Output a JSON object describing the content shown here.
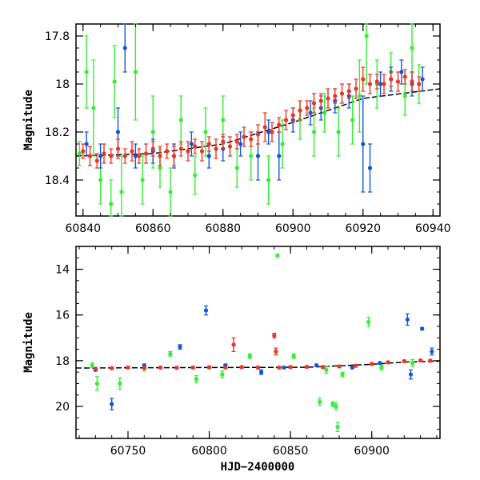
{
  "chart_data": [
    {
      "type": "scatter",
      "title": "",
      "xlabel": "",
      "ylabel": "Magnitude",
      "xlim": [
        60838,
        60942
      ],
      "ylim": [
        18.55,
        17.75
      ],
      "y_inverted": true,
      "grid": false,
      "x_ticks": [
        60840,
        60860,
        60880,
        60900,
        60920,
        60940
      ],
      "y_ticks": [
        17.8,
        18,
        18.2,
        18.4
      ],
      "x_tick_labels": [
        "60840",
        "60860",
        "60880",
        "60900",
        "60920",
        "60940"
      ],
      "y_tick_labels": [
        "17.8",
        "18",
        "18.2",
        "18.4"
      ],
      "series_colors": {
        "green": "#33ee33",
        "blue": "#1155dd",
        "red": "#ee3322",
        "trend": "#000000"
      },
      "series": [
        {
          "color": "#33ee33",
          "points": [
            [
              60839,
              18.29,
              0.05
            ],
            [
              60841,
              17.95,
              0.15
            ],
            [
              60843,
              18.1,
              0.2
            ],
            [
              60845,
              18.4,
              0.1
            ],
            [
              60848,
              18.5,
              0.1
            ],
            [
              60849,
              17.99,
              0.15
            ],
            [
              60851,
              18.45,
              0.15
            ],
            [
              60855,
              17.95,
              0.2
            ],
            [
              60857,
              18.4,
              0.1
            ],
            [
              60860,
              18.2,
              0.15
            ],
            [
              60862,
              18.35,
              0.08
            ],
            [
              60865,
              18.45,
              0.1
            ],
            [
              60868,
              18.15,
              0.1
            ],
            [
              60872,
              18.38,
              0.08
            ],
            [
              60875,
              18.2,
              0.1
            ],
            [
              60880,
              18.15,
              0.1
            ],
            [
              60884,
              18.35,
              0.08
            ],
            [
              60888,
              18.3,
              0.1
            ],
            [
              60893,
              18.4,
              0.1
            ],
            [
              60897,
              18.25,
              0.1
            ],
            [
              60902,
              18.15,
              0.08
            ],
            [
              60906,
              18.2,
              0.1
            ],
            [
              60909,
              18.12,
              0.08
            ],
            [
              60913,
              18.2,
              0.1
            ],
            [
              60917,
              18.15,
              0.1
            ],
            [
              60919,
              18.05,
              0.15
            ],
            [
              60921,
              17.8,
              0.2
            ],
            [
              60924,
              18.0,
              0.1
            ],
            [
              60928,
              17.95,
              0.08
            ],
            [
              60932,
              18.05,
              0.08
            ],
            [
              60934,
              17.85,
              0.1
            ],
            [
              60936,
              18.0,
              0.08
            ]
          ]
        },
        {
          "color": "#1155dd",
          "points": [
            [
              60841,
              18.25,
              0.05
            ],
            [
              60845,
              18.3,
              0.05
            ],
            [
              60850,
              18.2,
              0.1
            ],
            [
              60852,
              17.85,
              0.1
            ],
            [
              60855,
              18.3,
              0.05
            ],
            [
              60860,
              18.28,
              0.05
            ],
            [
              60866,
              18.3,
              0.05
            ],
            [
              60871,
              18.25,
              0.05
            ],
            [
              60876,
              18.3,
              0.05
            ],
            [
              60880,
              18.27,
              0.05
            ],
            [
              60885,
              18.25,
              0.05
            ],
            [
              60890,
              18.3,
              0.1
            ],
            [
              60893,
              18.2,
              0.05
            ],
            [
              60896,
              18.3,
              0.1
            ],
            [
              60900,
              18.15,
              0.05
            ],
            [
              60905,
              18.12,
              0.05
            ],
            [
              60908,
              18.1,
              0.05
            ],
            [
              60912,
              18.07,
              0.05
            ],
            [
              60916,
              18.05,
              0.05
            ],
            [
              60920,
              18.25,
              0.2
            ],
            [
              60922,
              18.35,
              0.1
            ],
            [
              60925,
              18.0,
              0.05
            ],
            [
              60928,
              17.98,
              0.05
            ],
            [
              60931,
              17.95,
              0.05
            ],
            [
              60934,
              18.0,
              0.05
            ],
            [
              60937,
              17.98,
              0.05
            ]
          ]
        },
        {
          "color": "#ee3322",
          "points": [
            [
              60840,
              18.28,
              0.03
            ],
            [
              60842,
              18.3,
              0.04
            ],
            [
              60844,
              18.32,
              0.03
            ],
            [
              60846,
              18.29,
              0.04
            ],
            [
              60848,
              18.3,
              0.03
            ],
            [
              60850,
              18.27,
              0.04
            ],
            [
              60852,
              18.3,
              0.03
            ],
            [
              60854,
              18.28,
              0.04
            ],
            [
              60856,
              18.3,
              0.03
            ],
            [
              60858,
              18.29,
              0.04
            ],
            [
              60860,
              18.27,
              0.03
            ],
            [
              60862,
              18.3,
              0.04
            ],
            [
              60864,
              18.28,
              0.03
            ],
            [
              60866,
              18.3,
              0.04
            ],
            [
              60868,
              18.27,
              0.03
            ],
            [
              60870,
              18.28,
              0.04
            ],
            [
              60872,
              18.26,
              0.03
            ],
            [
              60874,
              18.28,
              0.04
            ],
            [
              60876,
              18.25,
              0.03
            ],
            [
              60878,
              18.27,
              0.04
            ],
            [
              60880,
              18.24,
              0.03
            ],
            [
              60882,
              18.26,
              0.04
            ],
            [
              60884,
              18.24,
              0.03
            ],
            [
              60886,
              18.22,
              0.04
            ],
            [
              60888,
              18.23,
              0.03
            ],
            [
              60890,
              18.21,
              0.04
            ],
            [
              60892,
              18.18,
              0.06
            ],
            [
              60894,
              18.2,
              0.04
            ],
            [
              60896,
              18.17,
              0.03
            ],
            [
              60898,
              18.15,
              0.04
            ],
            [
              60900,
              18.13,
              0.03
            ],
            [
              60902,
              18.11,
              0.04
            ],
            [
              60904,
              18.1,
              0.03
            ],
            [
              60906,
              18.08,
              0.04
            ],
            [
              60908,
              18.07,
              0.03
            ],
            [
              60910,
              18.06,
              0.04
            ],
            [
              60912,
              18.05,
              0.03
            ],
            [
              60914,
              18.04,
              0.04
            ],
            [
              60916,
              18.03,
              0.03
            ],
            [
              60918,
              18.02,
              0.04
            ],
            [
              60920,
              17.98,
              0.05
            ],
            [
              60922,
              18.0,
              0.04
            ],
            [
              60924,
              17.99,
              0.03
            ],
            [
              60926,
              18.0,
              0.04
            ],
            [
              60928,
              17.98,
              0.03
            ],
            [
              60930,
              17.99,
              0.04
            ],
            [
              60932,
              17.97,
              0.03
            ],
            [
              60934,
              17.99,
              0.04
            ],
            [
              60936,
              18.0,
              0.03
            ]
          ]
        }
      ],
      "trend_line": [
        [
          60838,
          18.3
        ],
        [
          60860,
          18.29
        ],
        [
          60880,
          18.25
        ],
        [
          60900,
          18.16
        ],
        [
          60920,
          18.06
        ],
        [
          60942,
          18.02
        ]
      ]
    },
    {
      "type": "scatter",
      "title": "",
      "xlabel": "HJD−2400000",
      "ylabel": "Magnitude",
      "xlim": [
        60718,
        60942
      ],
      "ylim": [
        21.4,
        13
      ],
      "y_inverted": true,
      "grid": false,
      "x_ticks": [
        60750,
        60800,
        60850,
        60900
      ],
      "y_ticks": [
        14,
        16,
        18,
        20
      ],
      "x_tick_labels": [
        "60750",
        "60800",
        "60850",
        "60900"
      ],
      "y_tick_labels": [
        "14",
        "16",
        "18",
        "20"
      ],
      "series_colors": {
        "green": "#33ee33",
        "blue": "#1155dd",
        "red": "#ee3322",
        "trend": "#000000"
      },
      "series": [
        {
          "color": "#33ee33",
          "points": [
            [
              60728,
              18.2,
              0.1
            ],
            [
              60731,
              19.0,
              0.3
            ],
            [
              60745,
              19.0,
              0.25
            ],
            [
              60760,
              18.3,
              0.15
            ],
            [
              60776,
              17.7,
              0.1
            ],
            [
              60792,
              18.8,
              0.15
            ],
            [
              60808,
              18.6,
              0.15
            ],
            [
              60825,
              17.8,
              0.1
            ],
            [
              60842,
              13.4,
              0.05
            ],
            [
              60852,
              17.8,
              0.1
            ],
            [
              60868,
              19.8,
              0.15
            ],
            [
              60872,
              18.4,
              0.15
            ],
            [
              60876,
              19.9,
              0.1
            ],
            [
              60878,
              20.0,
              0.15
            ],
            [
              60879,
              20.9,
              0.2
            ],
            [
              60882,
              18.6,
              0.1
            ],
            [
              60898,
              16.3,
              0.2
            ],
            [
              60906,
              18.3,
              0.1
            ],
            [
              60925,
              18.1,
              0.15
            ]
          ]
        },
        {
          "color": "#1155dd",
          "points": [
            [
              60730,
              18.4,
              0.05
            ],
            [
              60740,
              19.9,
              0.25
            ],
            [
              60760,
              18.2,
              0.05
            ],
            [
              60782,
              17.4,
              0.1
            ],
            [
              60798,
              15.8,
              0.2
            ],
            [
              60810,
              18.2,
              0.05
            ],
            [
              60832,
              18.5,
              0.1
            ],
            [
              60846,
              18.3,
              0.05
            ],
            [
              60866,
              18.2,
              0.05
            ],
            [
              60888,
              18.3,
              0.05
            ],
            [
              60905,
              18.1,
              0.05
            ],
            [
              60922,
              16.2,
              0.25
            ],
            [
              60924,
              18.6,
              0.2
            ],
            [
              60931,
              16.6,
              0.05
            ],
            [
              60937,
              17.6,
              0.15
            ]
          ]
        },
        {
          "color": "#ee3322",
          "points": [
            [
              60730,
              18.35,
              0.05
            ],
            [
              60740,
              18.33,
              0.05
            ],
            [
              60750,
              18.3,
              0.05
            ],
            [
              60760,
              18.32,
              0.05
            ],
            [
              60770,
              18.3,
              0.05
            ],
            [
              60780,
              18.31,
              0.05
            ],
            [
              60790,
              18.3,
              0.05
            ],
            [
              60800,
              18.29,
              0.05
            ],
            [
              60810,
              18.3,
              0.05
            ],
            [
              60815,
              17.3,
              0.3
            ],
            [
              60820,
              18.28,
              0.05
            ],
            [
              60830,
              18.3,
              0.05
            ],
            [
              60840,
              16.9,
              0.1
            ],
            [
              60841,
              17.6,
              0.15
            ],
            [
              60843,
              18.3,
              0.05
            ],
            [
              60850,
              18.28,
              0.05
            ],
            [
              60860,
              18.27,
              0.05
            ],
            [
              60870,
              18.28,
              0.05
            ],
            [
              60880,
              18.25,
              0.05
            ],
            [
              60890,
              18.22,
              0.05
            ],
            [
              60900,
              18.14,
              0.05
            ],
            [
              60910,
              18.07,
              0.05
            ],
            [
              60920,
              18.02,
              0.05
            ],
            [
              60930,
              17.99,
              0.05
            ],
            [
              60936,
              18.0,
              0.05
            ]
          ]
        }
      ],
      "trend_line": [
        [
          60718,
          18.32
        ],
        [
          60800,
          18.3
        ],
        [
          60860,
          18.29
        ],
        [
          60900,
          18.16
        ],
        [
          60920,
          18.06
        ],
        [
          60942,
          18.02
        ]
      ]
    }
  ]
}
